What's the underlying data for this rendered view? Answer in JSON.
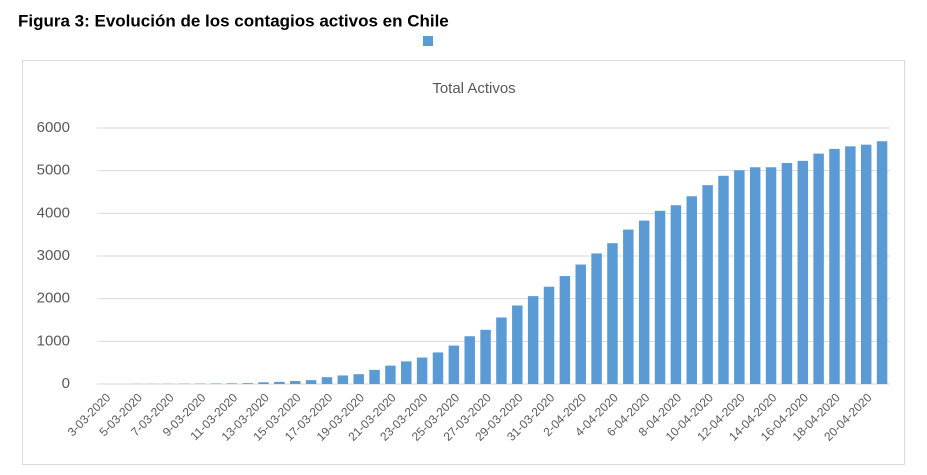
{
  "heading": "Figura 3: Evolución de los contagios activos en Chile",
  "chart_data": {
    "type": "bar",
    "title": "Total Activos",
    "categories": [
      "3-03-2020",
      null,
      "5-03-2020",
      null,
      "7-03-2020",
      null,
      "9-03-2020",
      null,
      "11-03-2020",
      null,
      "13-03-2020",
      null,
      "15-03-2020",
      null,
      "17-03-2020",
      null,
      "19-03-2020",
      null,
      "21-03-2020",
      null,
      "23-03-2020",
      null,
      "25-03-2020",
      null,
      "27-03-2020",
      null,
      "29-03-2020",
      null,
      "31-03-2020",
      null,
      "2-04-2020",
      null,
      "4-04-2020",
      null,
      "6-04-2020",
      null,
      "8-04-2020",
      null,
      "10-04-2020",
      null,
      "12-04-2020",
      null,
      "14-04-2020",
      null,
      "16-04-2020",
      null,
      "18-04-2020",
      null,
      "20-04-2020",
      null
    ],
    "values": [
      1,
      1,
      3,
      4,
      5,
      7,
      9,
      12,
      15,
      20,
      40,
      50,
      70,
      90,
      160,
      200,
      230,
      330,
      430,
      530,
      620,
      740,
      900,
      1120,
      1270,
      1560,
      1840,
      2060,
      2280,
      2530,
      2800,
      3060,
      3300,
      3620,
      3830,
      4060,
      4190,
      4400,
      4660,
      4880,
      5010,
      5080,
      5080,
      5180,
      5230,
      5400,
      5510,
      5570,
      5610,
      5690
    ],
    "color": "#5b9bd5",
    "ylim": [
      0,
      6000
    ],
    "yticks": [
      0,
      1000,
      2000,
      3000,
      4000,
      5000,
      6000
    ],
    "grid": true
  }
}
